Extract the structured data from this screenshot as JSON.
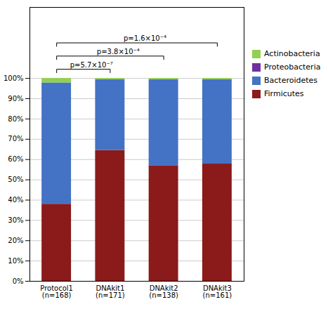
{
  "chart_data": {
    "type": "bar",
    "stacked": true,
    "categories": [
      "Protocol1\n(n=168)",
      "DNAkit1\n(n=171)",
      "DNAkit2\n(n=138)",
      "DNAkit3\n(n=161)"
    ],
    "series": [
      {
        "name": "Firmicutes",
        "color": "#8B1A1A",
        "values": [
          0.38,
          0.645,
          0.57,
          0.578
        ]
      },
      {
        "name": "Bacteroidetes",
        "color": "#4472C4",
        "values": [
          0.598,
          0.349,
          0.424,
          0.416
        ]
      },
      {
        "name": "Proteobacteria",
        "color": "#7030A0",
        "values": [
          0.0,
          0.0,
          0.0,
          0.0
        ]
      },
      {
        "name": "Actinobacteria",
        "color": "#92D050",
        "values": [
          0.022,
          0.006,
          0.006,
          0.006
        ]
      }
    ],
    "ylim": [
      0,
      1.35
    ],
    "yticks": [
      {
        "value": 0.0,
        "label": "0%"
      },
      {
        "value": 0.1,
        "label": "10%"
      },
      {
        "value": 0.2,
        "label": "20%"
      },
      {
        "value": 0.3,
        "label": "30%"
      },
      {
        "value": 0.4,
        "label": "40%"
      },
      {
        "value": 0.5,
        "label": "50%"
      },
      {
        "value": 0.6,
        "label": "60%"
      },
      {
        "value": 0.7,
        "label": "70%"
      },
      {
        "value": 0.8,
        "label": "80%"
      },
      {
        "value": 0.9,
        "label": "90%"
      },
      {
        "value": 1.0,
        "label": "100%"
      }
    ],
    "grid": true,
    "legend": "right",
    "annotations": [
      {
        "text": "p=5.7×10⁻⁷",
        "x1": 0,
        "x2": 1,
        "y": 1.045
      },
      {
        "text": "p=3.8×10⁻⁴",
        "x1": 0,
        "x2": 2,
        "y": 1.11
      },
      {
        "text": "p=1.6×10⁻⁴",
        "x1": 0,
        "x2": 3,
        "y": 1.175
      }
    ]
  }
}
